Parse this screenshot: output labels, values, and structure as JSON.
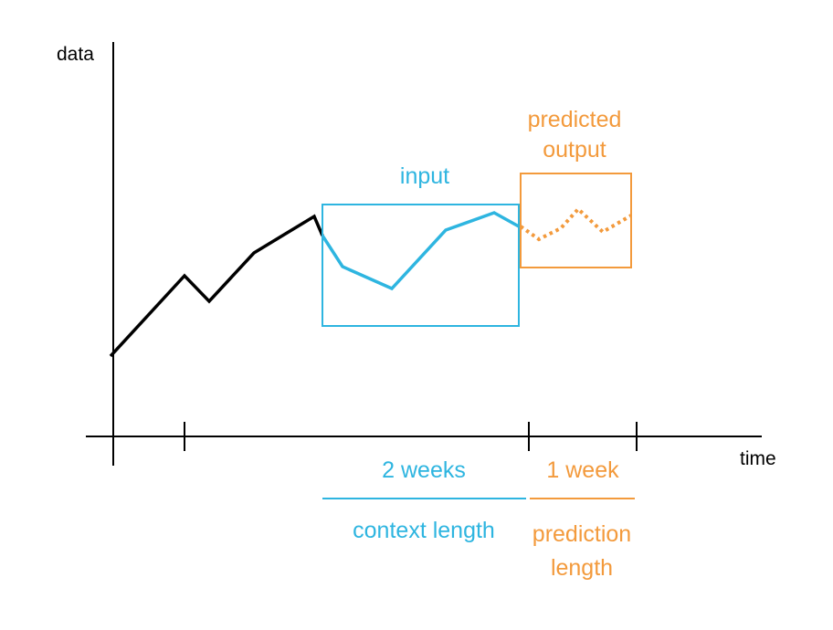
{
  "axes": {
    "y_label": "data",
    "x_label": "time"
  },
  "boxes": {
    "input_label": "input",
    "predicted_label_line1": "predicted",
    "predicted_label_line2": "output"
  },
  "spans": {
    "context_duration": "2 weeks",
    "context_name": "context length",
    "prediction_duration": "1 week",
    "prediction_name_line1": "prediction",
    "prediction_name_line2": "length"
  },
  "colors": {
    "axis": "#000000",
    "history": "#000000",
    "context": "#2eb5e0",
    "prediction": "#f39a3c"
  }
}
